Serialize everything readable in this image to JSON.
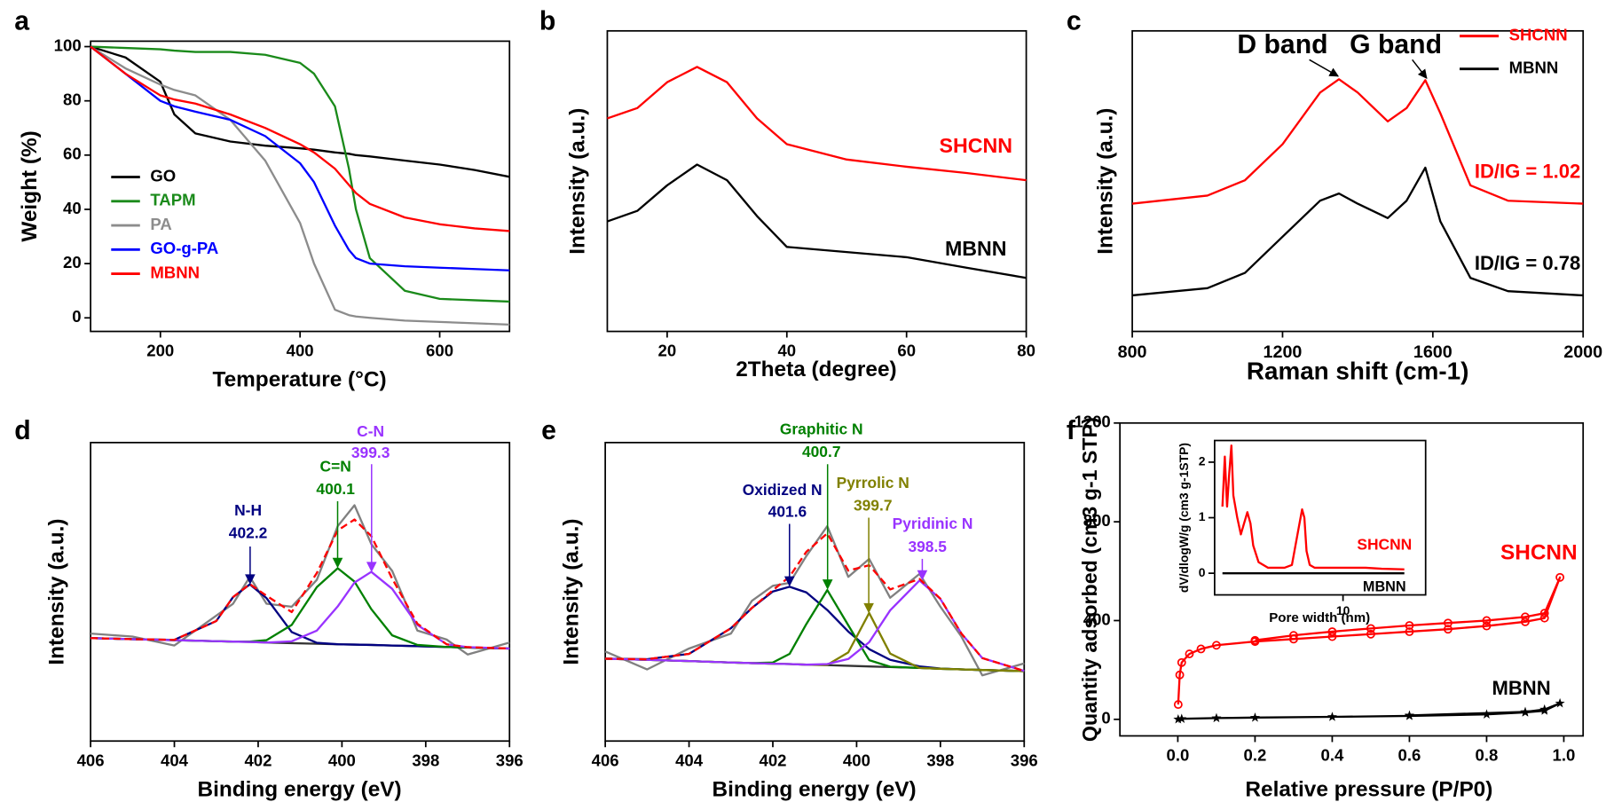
{
  "chart_data": [
    {
      "type": "line",
      "label": "a",
      "xlabel": "Temperature (°C)",
      "ylabel": "Weight (%)",
      "xlim": [
        100,
        700
      ],
      "ylim": [
        -5,
        102
      ],
      "xticks": [
        200,
        400,
        600
      ],
      "yticks": [
        0,
        20,
        40,
        60,
        80,
        100
      ],
      "legend": "lower left",
      "x": [
        100,
        150,
        200,
        220,
        250,
        300,
        350,
        400,
        420,
        450,
        470,
        480,
        500,
        550,
        600,
        650,
        700
      ],
      "series": [
        {
          "name": "GO",
          "color": "#000000",
          "values": [
            100,
            96,
            87,
            75,
            68,
            65,
            63.5,
            62.5,
            62,
            61,
            60.5,
            60,
            59.5,
            58,
            56.5,
            54.5,
            52
          ]
        },
        {
          "name": "TAPM",
          "color": "#1a8a1a",
          "values": [
            100,
            99.5,
            99,
            98.5,
            98,
            98,
            97,
            94,
            90,
            78,
            55,
            40,
            22,
            10,
            7,
            6.5,
            6
          ]
        },
        {
          "name": "PA",
          "color": "#8c8c8c",
          "values": [
            100,
            92,
            86,
            84,
            82,
            73,
            58,
            35,
            20,
            3,
            1,
            0.5,
            0,
            -1,
            -1.5,
            -2,
            -2.5
          ]
        },
        {
          "name": "GO-g-PA",
          "color": "#0000ff",
          "values": [
            100,
            90,
            80,
            78,
            76,
            73,
            67,
            57,
            50,
            34,
            25,
            22,
            20,
            19,
            18.5,
            18,
            17.5
          ]
        },
        {
          "name": "MBNN",
          "color": "#ff0000",
          "values": [
            100,
            90,
            82,
            80.5,
            79,
            75,
            70,
            64,
            61,
            55,
            49,
            46,
            42,
            37,
            34.5,
            33,
            32
          ]
        }
      ]
    },
    {
      "type": "line",
      "label": "b",
      "xlabel": "2Theta (degree)",
      "ylabel": "Intensity (a.u.)",
      "xlim": [
        10,
        80
      ],
      "ylim": [
        0,
        100
      ],
      "xticks": [
        20,
        40,
        60,
        80
      ],
      "x": [
        10,
        15,
        20,
        25,
        30,
        35,
        40,
        50,
        60,
        70,
        80
      ],
      "series": [
        {
          "name": "SHCNN",
          "color": "#ff0000",
          "values": [
            70.9,
            74.3,
            82.9,
            88.0,
            82.9,
            70.9,
            62.3,
            57.2,
            54.8,
            52.7,
            50.3
          ]
        },
        {
          "name": "MBNN",
          "color": "#000000",
          "values": [
            36.6,
            40.1,
            48.6,
            55.5,
            50.3,
            38.4,
            28.1,
            26.4,
            24.7,
            21.2,
            17.8
          ]
        }
      ]
    },
    {
      "type": "line",
      "label": "c",
      "xlabel": "Raman shift (cm-1)",
      "ylabel": "Intensity (a.u.)",
      "xlim": [
        800,
        2000
      ],
      "ylim": [
        0,
        100
      ],
      "xticks": [
        800,
        1200,
        1600,
        2000
      ],
      "legend": "upper right",
      "annotations": [
        "D band",
        "G band",
        "ID/IG = 1.02",
        "ID/IG = 0.78"
      ],
      "x": [
        800,
        1000,
        1100,
        1200,
        1300,
        1350,
        1400,
        1480,
        1530,
        1580,
        1620,
        1700,
        1800,
        2000
      ],
      "series": [
        {
          "name": "SHCNN",
          "color": "#ff0000",
          "values": [
            42.5,
            45.2,
            50.3,
            62.3,
            79.5,
            83.9,
            79.5,
            69.9,
            74.3,
            83.6,
            72.6,
            48.6,
            43.5,
            42.5
          ]
        },
        {
          "name": "MBNN",
          "color": "#000000",
          "values": [
            12.0,
            14.4,
            19.5,
            31.5,
            43.5,
            45.9,
            42.5,
            37.7,
            43.5,
            54.5,
            36.6,
            17.8,
            13.4,
            12.0
          ]
        }
      ]
    },
    {
      "type": "line",
      "label": "d",
      "xlabel": "Binding energy (eV)",
      "ylabel": "Intensity (a.u.)",
      "xlim": [
        406,
        396
      ],
      "ylim": [
        0,
        100
      ],
      "xticks": [
        406,
        404,
        402,
        400,
        398,
        396
      ],
      "annotations": [
        "N-H",
        "402.2",
        "C=N",
        "400.1",
        "C-N",
        "399.3"
      ],
      "x": [
        406,
        405,
        404,
        403,
        402.6,
        402.2,
        401.8,
        401.2,
        400.6,
        400.1,
        399.7,
        399.3,
        398.8,
        398.2,
        397.5,
        397,
        396
      ],
      "series": [
        {
          "color": "#808080",
          "values": [
            36,
            35,
            32,
            42,
            46,
            55,
            46,
            45,
            54,
            72,
            79,
            66,
            57,
            37,
            34,
            29,
            33
          ]
        },
        {
          "color": "#333333",
          "values": [
            34.5,
            34.15,
            33.8,
            33.45,
            33.3,
            33.2,
            33.0,
            32.8,
            32.6,
            32.4,
            32.3,
            32.2,
            32.0,
            31.8,
            31.5,
            31.35,
            31.0
          ]
        },
        {
          "color": "#000080",
          "values": [
            34.5,
            34.15,
            33.9,
            40.2,
            48.2,
            52.5,
            47.9,
            36.5,
            32.9,
            32.4,
            32.3,
            32.2,
            32.0,
            31.8,
            31.5,
            31.35,
            31.0
          ]
        },
        {
          "color": "#008000",
          "values": [
            34.5,
            34.15,
            33.8,
            33.45,
            33.3,
            33.3,
            33.8,
            38.9,
            51.6,
            57.9,
            53.4,
            44.2,
            35.4,
            32.2,
            31.5,
            31.35,
            31.0
          ]
        },
        {
          "color": "#9933ff",
          "values": [
            34.5,
            34.15,
            33.8,
            33.45,
            33.3,
            33.2,
            33.0,
            33.4,
            37.0,
            45.1,
            53.1,
            56.7,
            51.0,
            38.9,
            32.4,
            31.45,
            31.0
          ]
        },
        {
          "color": "#ff0000",
          "dash": true,
          "values": [
            34.5,
            34.15,
            33.9,
            40.2,
            48.2,
            52.6,
            48.7,
            43.2,
            56.3,
            70.6,
            74.2,
            68.7,
            54.4,
            39.3,
            32.4,
            31.45,
            31.0
          ]
        }
      ]
    },
    {
      "type": "line",
      "label": "e",
      "xlabel": "Binding energy (eV)",
      "ylabel": "Intensity (a.u.)",
      "xlim": [
        406,
        396
      ],
      "ylim": [
        0,
        100
      ],
      "xticks": [
        406,
        404,
        402,
        400,
        398,
        396
      ],
      "annotations": [
        "Graphitic N",
        "400.7",
        "Oxidized N",
        "401.6",
        "Pyrrolic N",
        "399.7",
        "Pyridinic N",
        "398.5"
      ],
      "x": [
        406,
        405,
        404,
        403,
        402.5,
        402,
        401.6,
        401.2,
        400.7,
        400.2,
        399.7,
        399.2,
        398.5,
        398,
        397.5,
        397,
        396
      ],
      "series": [
        {
          "color": "#808080",
          "values": [
            30,
            24,
            31,
            36,
            47,
            52,
            53,
            62,
            72,
            55,
            61,
            48,
            56,
            45,
            35,
            22,
            26
          ]
        },
        {
          "color": "#333333",
          "values": [
            27.6,
            27.2,
            26.8,
            26.3,
            26.1,
            25.9,
            25.8,
            25.6,
            25.4,
            25.2,
            25.0,
            24.8,
            24.5,
            24.2,
            24.0,
            23.8,
            23.4
          ]
        },
        {
          "color": "#000080",
          "values": [
            27.6,
            27.4,
            29.2,
            37.8,
            44.6,
            50.1,
            51.7,
            49.8,
            43.9,
            36.7,
            30.8,
            27.2,
            25.0,
            24.3,
            24.0,
            23.8,
            23.4
          ]
        },
        {
          "color": "#008000",
          "values": [
            27.6,
            27.2,
            26.8,
            26.3,
            26.1,
            26.3,
            29.2,
            39.2,
            50.6,
            38.8,
            27.1,
            24.9,
            24.5,
            24.2,
            24.0,
            23.8,
            23.4
          ]
        },
        {
          "color": "#808000",
          "values": [
            27.6,
            27.2,
            26.8,
            26.3,
            26.1,
            25.9,
            25.8,
            25.6,
            25.5,
            29.7,
            42.9,
            29.3,
            24.5,
            24.2,
            24.0,
            23.8,
            23.4
          ]
        },
        {
          "color": "#9933ff",
          "values": [
            27.6,
            27.2,
            26.8,
            26.3,
            26.1,
            25.9,
            25.8,
            25.6,
            25.8,
            27.5,
            33.1,
            43.8,
            53.8,
            47.6,
            36.0,
            27.8,
            23.5
          ]
        },
        {
          "color": "#ff0000",
          "dash": true,
          "values": [
            27.6,
            27.4,
            29.2,
            37.8,
            44.6,
            50.5,
            55.1,
            63.4,
            69.6,
            57.1,
            58.9,
            50.8,
            54.3,
            47.7,
            36.0,
            27.8,
            23.5
          ]
        }
      ]
    },
    {
      "type": "line",
      "label": "f",
      "xlabel": "Relative pressure (P/P0)",
      "ylabel": "Quantity adsorbed (cm3 g-1 STP)",
      "xlim": [
        -0.15,
        1.05
      ],
      "ylim": [
        -67,
        1200
      ],
      "xticks": [
        {
          "value": 0,
          "label": "0.0"
        },
        0.2,
        0.4,
        0.6,
        0.8,
        {
          "value": 1,
          "label": "1.0"
        }
      ],
      "yticks": [
        0,
        400,
        800,
        1200
      ],
      "series": [
        {
          "name": "SHCNN",
          "color": "#ff0000",
          "marker": "circle",
          "x": [
            0.001,
            0.005,
            0.01,
            0.03,
            0.06,
            0.1,
            0.2,
            0.3,
            0.4,
            0.5,
            0.6,
            0.7,
            0.8,
            0.9,
            0.95,
            0.99,
            0.95,
            0.9,
            0.8,
            0.7,
            0.6,
            0.5,
            0.4,
            0.3,
            0.2
          ],
          "values": [
            60,
            180,
            230,
            265,
            285,
            300,
            315,
            325,
            335,
            345,
            355,
            365,
            378,
            395,
            410,
            575,
            430,
            415,
            400,
            390,
            380,
            368,
            355,
            340,
            320
          ]
        },
        {
          "name": "MBNN",
          "color": "#000000",
          "marker": "star",
          "x": [
            0.001,
            0.01,
            0.1,
            0.2,
            0.4,
            0.6,
            0.8,
            0.9,
            0.95,
            0.99,
            0.95,
            0.9,
            0.6
          ],
          "values": [
            0,
            2,
            5,
            7,
            10,
            14,
            20,
            28,
            35,
            65,
            40,
            30,
            16
          ]
        }
      ],
      "inset": {
        "type": "line",
        "xlabel": "Pore width (nm)",
        "ylabel": "dV/dlogW/g (cm3 g-1STP)",
        "log_x": true,
        "xlim": [
          1,
          44
        ],
        "ylim": [
          -0.39,
          2.39
        ],
        "xticks": [
          10
        ],
        "yticks": [
          0,
          1,
          2
        ],
        "series": [
          {
            "name": "SHCNN",
            "color": "#ff0000",
            "x": [
              1.15,
              1.2,
              1.25,
              1.3,
              1.35,
              1.4,
              1.5,
              1.6,
              1.8,
              1.9,
              2.0,
              2.2,
              2.6,
              3,
              3.5,
              4,
              4.5,
              4.8,
              5,
              5.2,
              5.5,
              6,
              7,
              10,
              15,
              20,
              30
            ],
            "values": [
              1.2,
              2.1,
              1.2,
              1.8,
              2.3,
              1.4,
              1.0,
              0.7,
              1.1,
              0.9,
              0.5,
              0.2,
              0.1,
              0.1,
              0.1,
              0.15,
              0.8,
              1.15,
              1.0,
              0.4,
              0.15,
              0.1,
              0.1,
              0.1,
              0.1,
              0.08,
              0.07
            ]
          },
          {
            "name": "MBNN",
            "color": "#000000",
            "x": [
              1.15,
              2,
              5,
              10,
              20,
              30
            ],
            "values": [
              0,
              0,
              0,
              0,
              0,
              0
            ]
          }
        ]
      }
    }
  ]
}
